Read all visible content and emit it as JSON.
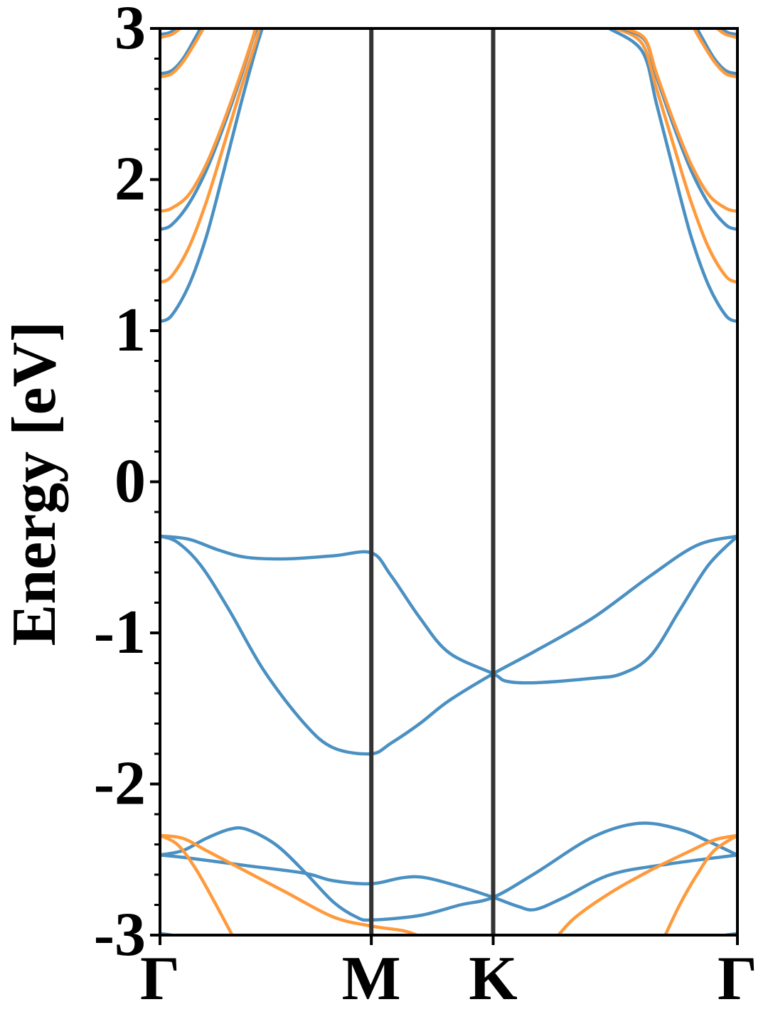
{
  "chart_data": {
    "type": "line",
    "title": "",
    "ylabel": "Energy [eV]",
    "xlabel": "",
    "ylim": [
      -3,
      3
    ],
    "yticks": [
      {
        "value": 3,
        "label": "3"
      },
      {
        "value": 2,
        "label": "2"
      },
      {
        "value": 1,
        "label": "1"
      },
      {
        "value": 0,
        "label": "0"
      },
      {
        "value": -1,
        "label": "-1"
      },
      {
        "value": -2,
        "label": "-2"
      },
      {
        "value": -3,
        "label": "-3"
      }
    ],
    "minor_tick_step": 0.2,
    "k_path": [
      {
        "label": "Γ",
        "position": 0.0
      },
      {
        "label": "M",
        "position": 0.366
      },
      {
        "label": "K",
        "position": 0.577
      },
      {
        "label": "Γ",
        "position": 1.0
      }
    ],
    "grid": false,
    "legend": "none",
    "colors": {
      "band_blue": "#4a90c2",
      "band_orange": "#ff9a3c",
      "high_symmetry_line": "#333333",
      "axes": "#000000"
    },
    "series": [
      {
        "color": "band_blue",
        "points": [
          [
            0.0,
            -0.36
          ],
          [
            0.05,
            -0.38
          ],
          [
            0.1,
            -0.45
          ],
          [
            0.15,
            -0.5
          ],
          [
            0.22,
            -0.51
          ],
          [
            0.3,
            -0.49
          ],
          [
            0.366,
            -0.47
          ],
          [
            0.4,
            -0.62
          ],
          [
            0.45,
            -0.9
          ],
          [
            0.5,
            -1.13
          ],
          [
            0.577,
            -1.27
          ],
          [
            0.6,
            -1.32
          ],
          [
            0.65,
            -1.33
          ],
          [
            0.75,
            -1.3
          ],
          [
            0.8,
            -1.27
          ],
          [
            0.85,
            -1.15
          ],
          [
            0.9,
            -0.85
          ],
          [
            0.95,
            -0.55
          ],
          [
            1.0,
            -0.36
          ]
        ]
      },
      {
        "color": "band_blue",
        "points": [
          [
            0.0,
            -0.36
          ],
          [
            0.03,
            -0.4
          ],
          [
            0.07,
            -0.55
          ],
          [
            0.12,
            -0.85
          ],
          [
            0.18,
            -1.25
          ],
          [
            0.25,
            -1.6
          ],
          [
            0.3,
            -1.76
          ],
          [
            0.366,
            -1.8
          ],
          [
            0.4,
            -1.73
          ],
          [
            0.45,
            -1.6
          ],
          [
            0.5,
            -1.45
          ],
          [
            0.577,
            -1.27
          ],
          [
            0.65,
            -1.12
          ],
          [
            0.75,
            -0.9
          ],
          [
            0.85,
            -0.62
          ],
          [
            0.93,
            -0.42
          ],
          [
            1.0,
            -0.36
          ]
        ]
      },
      {
        "color": "band_blue",
        "points": [
          [
            0.0,
            -2.47
          ],
          [
            0.04,
            -2.44
          ],
          [
            0.08,
            -2.36
          ],
          [
            0.12,
            -2.3
          ],
          [
            0.15,
            -2.3
          ],
          [
            0.2,
            -2.4
          ],
          [
            0.25,
            -2.58
          ],
          [
            0.3,
            -2.78
          ],
          [
            0.34,
            -2.88
          ],
          [
            0.366,
            -2.9
          ],
          [
            0.45,
            -2.87
          ],
          [
            0.52,
            -2.8
          ],
          [
            0.577,
            -2.75
          ],
          [
            0.65,
            -2.59
          ],
          [
            0.75,
            -2.35
          ],
          [
            0.83,
            -2.26
          ],
          [
            0.9,
            -2.3
          ],
          [
            0.95,
            -2.38
          ],
          [
            1.0,
            -2.47
          ]
        ]
      },
      {
        "color": "band_blue",
        "points": [
          [
            0.0,
            -2.47
          ],
          [
            0.05,
            -2.49
          ],
          [
            0.15,
            -2.54
          ],
          [
            0.25,
            -2.59
          ],
          [
            0.3,
            -2.64
          ],
          [
            0.366,
            -2.66
          ],
          [
            0.42,
            -2.62
          ],
          [
            0.46,
            -2.62
          ],
          [
            0.52,
            -2.68
          ],
          [
            0.577,
            -2.75
          ],
          [
            0.62,
            -2.81
          ],
          [
            0.65,
            -2.83
          ],
          [
            0.7,
            -2.75
          ],
          [
            0.78,
            -2.6
          ],
          [
            0.88,
            -2.53
          ],
          [
            1.0,
            -2.47
          ]
        ]
      },
      {
        "color": "band_orange",
        "points": [
          [
            0.0,
            -2.34
          ],
          [
            0.04,
            -2.36
          ],
          [
            0.08,
            -2.44
          ],
          [
            0.15,
            -2.58
          ],
          [
            0.22,
            -2.72
          ],
          [
            0.3,
            -2.88
          ],
          [
            0.366,
            -2.94
          ],
          [
            0.42,
            -2.97
          ],
          [
            0.445,
            -3.0
          ]
        ]
      },
      {
        "color": "band_orange",
        "points": [
          [
            0.0,
            -2.34
          ],
          [
            0.03,
            -2.4
          ],
          [
            0.06,
            -2.55
          ],
          [
            0.09,
            -2.75
          ],
          [
            0.125,
            -3.0
          ]
        ]
      },
      {
        "color": "band_orange",
        "points": [
          [
            0.69,
            -3.0
          ],
          [
            0.72,
            -2.88
          ],
          [
            0.78,
            -2.72
          ],
          [
            0.85,
            -2.57
          ],
          [
            0.92,
            -2.44
          ],
          [
            0.96,
            -2.37
          ],
          [
            1.0,
            -2.34
          ]
        ]
      },
      {
        "color": "band_orange",
        "points": [
          [
            0.875,
            -3.0
          ],
          [
            0.9,
            -2.8
          ],
          [
            0.93,
            -2.6
          ],
          [
            0.96,
            -2.44
          ],
          [
            1.0,
            -2.34
          ]
        ]
      },
      {
        "color": "band_blue",
        "points": [
          [
            0.0,
            -2.99
          ],
          [
            0.02,
            -3.0
          ]
        ]
      },
      {
        "color": "band_blue",
        "points": [
          [
            0.98,
            -3.0
          ],
          [
            1.0,
            -2.99
          ]
        ]
      },
      {
        "color": "band_blue",
        "points": [
          [
            0.0,
            1.06
          ],
          [
            0.02,
            1.1
          ],
          [
            0.05,
            1.3
          ],
          [
            0.08,
            1.62
          ],
          [
            0.11,
            2.05
          ],
          [
            0.14,
            2.5
          ],
          [
            0.165,
            2.85
          ],
          [
            0.177,
            3.0
          ]
        ]
      },
      {
        "color": "band_orange",
        "points": [
          [
            0.0,
            1.32
          ],
          [
            0.02,
            1.36
          ],
          [
            0.05,
            1.55
          ],
          [
            0.08,
            1.85
          ],
          [
            0.11,
            2.22
          ],
          [
            0.14,
            2.6
          ],
          [
            0.165,
            2.9
          ],
          [
            0.172,
            3.0
          ]
        ]
      },
      {
        "color": "band_blue",
        "points": [
          [
            0.0,
            1.67
          ],
          [
            0.02,
            1.7
          ],
          [
            0.05,
            1.84
          ],
          [
            0.08,
            2.06
          ],
          [
            0.11,
            2.35
          ],
          [
            0.14,
            2.68
          ],
          [
            0.16,
            2.92
          ],
          [
            0.167,
            3.0
          ]
        ]
      },
      {
        "color": "band_orange",
        "points": [
          [
            0.0,
            1.79
          ],
          [
            0.02,
            1.81
          ],
          [
            0.05,
            1.9
          ],
          [
            0.08,
            2.1
          ],
          [
            0.11,
            2.38
          ],
          [
            0.14,
            2.7
          ],
          [
            0.16,
            2.93
          ],
          [
            0.165,
            3.0
          ]
        ]
      },
      {
        "color": "band_blue",
        "points": [
          [
            0.0,
            2.7
          ],
          [
            0.02,
            2.72
          ],
          [
            0.04,
            2.8
          ],
          [
            0.06,
            2.93
          ],
          [
            0.07,
            3.0
          ]
        ]
      },
      {
        "color": "band_orange",
        "points": [
          [
            0.0,
            2.68
          ],
          [
            0.02,
            2.7
          ],
          [
            0.04,
            2.78
          ],
          [
            0.06,
            2.9
          ],
          [
            0.075,
            3.0
          ]
        ]
      },
      {
        "color": "band_blue",
        "points": [
          [
            0.0,
            2.96
          ],
          [
            0.015,
            2.97
          ],
          [
            0.03,
            3.0
          ]
        ]
      },
      {
        "color": "band_orange",
        "points": [
          [
            0.0,
            2.94
          ],
          [
            0.02,
            2.96
          ],
          [
            0.035,
            3.0
          ]
        ]
      },
      {
        "color": "band_blue",
        "points": [
          [
            1.0,
            1.06
          ],
          [
            0.98,
            1.1
          ],
          [
            0.95,
            1.3
          ],
          [
            0.92,
            1.62
          ],
          [
            0.89,
            2.05
          ],
          [
            0.86,
            2.5
          ],
          [
            0.835,
            2.85
          ],
          [
            0.778,
            3.0
          ]
        ]
      },
      {
        "color": "band_orange",
        "points": [
          [
            1.0,
            1.32
          ],
          [
            0.98,
            1.36
          ],
          [
            0.95,
            1.55
          ],
          [
            0.92,
            1.85
          ],
          [
            0.89,
            2.22
          ],
          [
            0.86,
            2.6
          ],
          [
            0.835,
            2.9
          ],
          [
            0.79,
            3.0
          ]
        ]
      },
      {
        "color": "band_blue",
        "points": [
          [
            1.0,
            1.67
          ],
          [
            0.98,
            1.7
          ],
          [
            0.95,
            1.84
          ],
          [
            0.92,
            2.06
          ],
          [
            0.89,
            2.35
          ],
          [
            0.86,
            2.68
          ],
          [
            0.84,
            2.92
          ],
          [
            0.8,
            3.0
          ]
        ]
      },
      {
        "color": "band_orange",
        "points": [
          [
            1.0,
            1.79
          ],
          [
            0.98,
            1.81
          ],
          [
            0.95,
            1.9
          ],
          [
            0.92,
            2.1
          ],
          [
            0.89,
            2.38
          ],
          [
            0.86,
            2.7
          ],
          [
            0.84,
            2.93
          ],
          [
            0.805,
            3.0
          ]
        ]
      },
      {
        "color": "band_blue",
        "points": [
          [
            1.0,
            2.7
          ],
          [
            0.98,
            2.72
          ],
          [
            0.96,
            2.8
          ],
          [
            0.94,
            2.93
          ],
          [
            0.93,
            3.0
          ]
        ]
      },
      {
        "color": "band_orange",
        "points": [
          [
            1.0,
            2.68
          ],
          [
            0.98,
            2.7
          ],
          [
            0.96,
            2.78
          ],
          [
            0.94,
            2.9
          ],
          [
            0.925,
            3.0
          ]
        ]
      },
      {
        "color": "band_blue",
        "points": [
          [
            1.0,
            2.96
          ],
          [
            0.985,
            2.97
          ],
          [
            0.97,
            3.0
          ]
        ]
      },
      {
        "color": "band_orange",
        "points": [
          [
            1.0,
            2.94
          ],
          [
            0.98,
            2.96
          ],
          [
            0.965,
            3.0
          ]
        ]
      }
    ]
  }
}
